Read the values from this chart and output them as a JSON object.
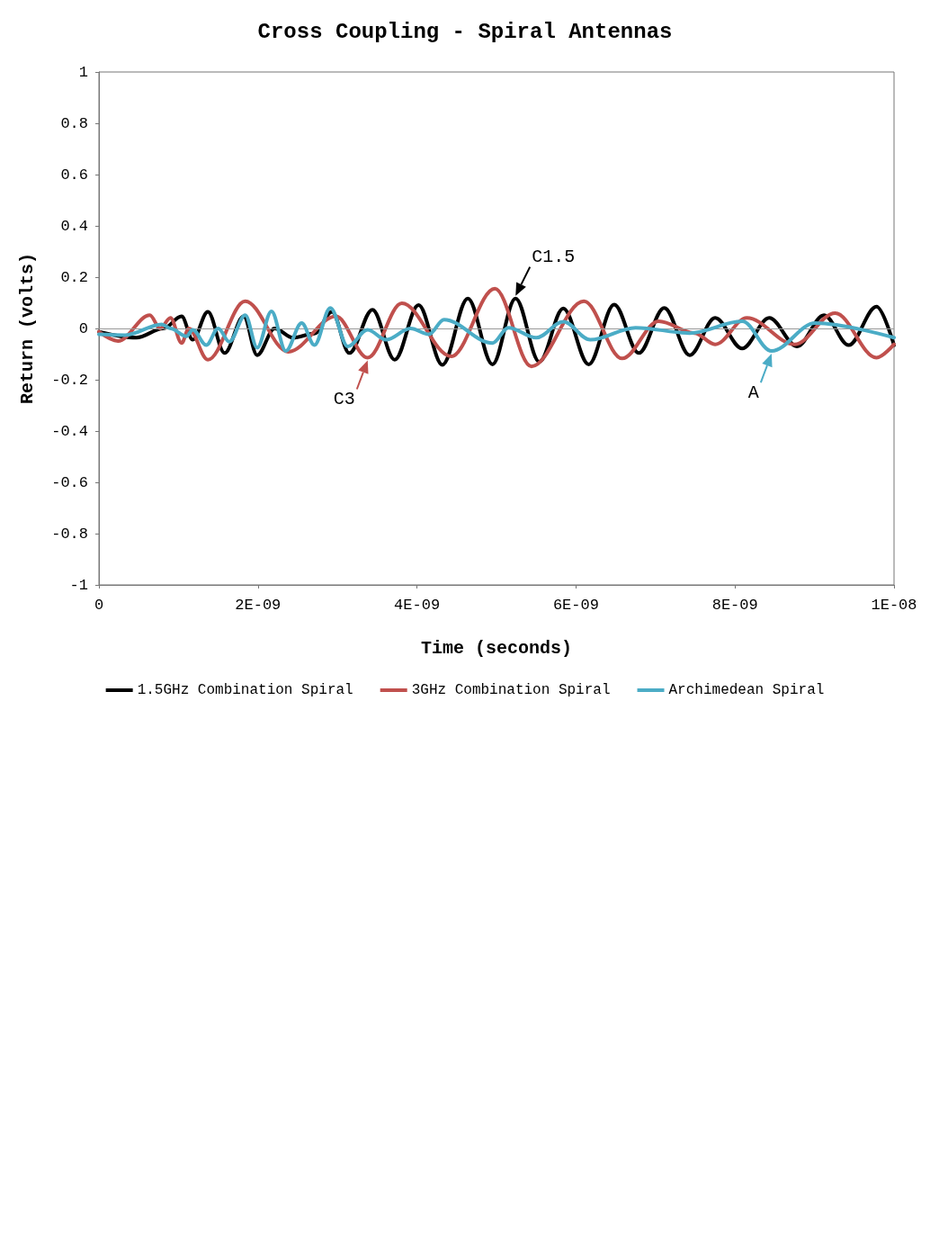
{
  "chart_data": {
    "type": "line",
    "title": "Cross Coupling - Spiral Antennas",
    "xlabel": "Time (seconds)",
    "ylabel": "Return (volts)",
    "xlim": [
      0,
      1e-08
    ],
    "xticks": [
      0,
      {
        "value": 2e-09,
        "label": "2E-09"
      },
      {
        "value": 4e-09,
        "label": "4E-09"
      },
      {
        "value": 6e-09,
        "label": "6E-09"
      },
      {
        "value": 8e-09,
        "label": "8E-09"
      },
      {
        "value": 1e-08,
        "label": "1E-08"
      }
    ],
    "ylim": [
      -1,
      1
    ],
    "yticks": [
      -1,
      -0.8,
      -0.6,
      -0.4,
      -0.2,
      0,
      0.2,
      0.4,
      0.6,
      0.8,
      1
    ],
    "grid": false,
    "ref_lines": [
      {
        "axis": "y",
        "value": 0,
        "color": "#999999"
      }
    ],
    "legend": "bottom",
    "marker": "none",
    "line_style": "solid",
    "series": [
      {
        "name": "1.5GHz Combination Spiral",
        "color": "#000000",
        "x": [
          0,
          4.7e-10,
          8.1e-10,
          1.04e-09,
          1.18e-09,
          1.37e-09,
          1.58e-09,
          1.82e-09,
          1.99e-09,
          2.21e-09,
          2.44e-09,
          2.71e-09,
          2.93e-09,
          3.15e-09,
          3.44e-09,
          3.72e-09,
          4.02e-09,
          4.32e-09,
          4.64e-09,
          4.95e-09,
          5.24e-09,
          5.54e-09,
          5.84e-09,
          6.16e-09,
          6.48e-09,
          6.79e-09,
          7.11e-09,
          7.43e-09,
          7.75e-09,
          8.09e-09,
          8.43e-09,
          8.78e-09,
          9.12e-09,
          9.43e-09,
          9.78e-09,
          1e-08
        ],
        "values": [
          -0.013,
          -0.036,
          0,
          0.047,
          -0.044,
          0.065,
          -0.096,
          0.047,
          -0.104,
          0,
          -0.036,
          -0.02,
          0.065,
          -0.096,
          0.073,
          -0.122,
          0.091,
          -0.142,
          0.117,
          -0.14,
          0.117,
          -0.13,
          0.078,
          -0.14,
          0.093,
          -0.096,
          0.08,
          -0.104,
          0.041,
          -0.078,
          0.041,
          -0.07,
          0.052,
          -0.065,
          0.085,
          -0.065
        ]
      },
      {
        "name": "3GHz Combination Spiral",
        "color": "#c0504d",
        "x": [
          0,
          2.4e-10,
          6.4e-10,
          7.7e-10,
          9e-10,
          1.04e-09,
          1.13e-09,
          1.37e-09,
          1.84e-09,
          2.38e-09,
          2.98e-09,
          3.38e-09,
          3.81e-09,
          4.43e-09,
          4.98e-09,
          5.44e-09,
          6.1e-09,
          6.58e-09,
          7.04e-09,
          7.49e-09,
          7.75e-09,
          8.15e-09,
          8.75e-09,
          9.26e-09,
          9.78e-09,
          1e-08
        ],
        "values": [
          -0.013,
          -0.049,
          0.052,
          0,
          0.041,
          -0.057,
          0,
          -0.122,
          0.106,
          -0.091,
          0.047,
          -0.114,
          0.098,
          -0.109,
          0.155,
          -0.148,
          0.106,
          -0.117,
          0.028,
          -0.018,
          -0.062,
          0.041,
          -0.062,
          0.06,
          -0.114,
          -0.062
        ]
      },
      {
        "name": "Archimedean Spiral",
        "color": "#4bacc6",
        "x": [
          0,
          3.3e-10,
          7.9e-10,
          9e-10,
          1.1e-09,
          1.18e-09,
          1.35e-09,
          1.5e-09,
          1.64e-09,
          1.84e-09,
          1.99e-09,
          2.17e-09,
          2.35e-09,
          2.55e-09,
          2.71e-09,
          2.91e-09,
          3.13e-09,
          3.38e-09,
          3.61e-09,
          3.92e-09,
          4.15e-09,
          4.34e-09,
          4.95e-09,
          5.15e-09,
          5.5e-09,
          5.84e-09,
          6.18e-09,
          6.75e-09,
          7.43e-09,
          8.09e-09,
          8.46e-09,
          9.01e-09,
          1e-08
        ],
        "values": [
          -0.023,
          -0.026,
          0.016,
          0,
          -0.031,
          -0.005,
          -0.065,
          0,
          -0.052,
          0.052,
          -0.075,
          0.067,
          -0.088,
          0.021,
          -0.065,
          0.08,
          -0.07,
          -0.005,
          -0.044,
          0,
          -0.023,
          0.034,
          -0.057,
          0.003,
          -0.036,
          0.026,
          -0.044,
          0.003,
          -0.018,
          0.028,
          -0.088,
          0.021,
          -0.036
        ]
      }
    ],
    "annotations": [
      {
        "text": "C3",
        "x": 3.38e-09,
        "y": -0.114
      },
      {
        "text": "C1.5",
        "x": 5.24e-09,
        "y": 0.117
      },
      {
        "text": "A",
        "x": 8.46e-09,
        "y": -0.088
      }
    ]
  }
}
